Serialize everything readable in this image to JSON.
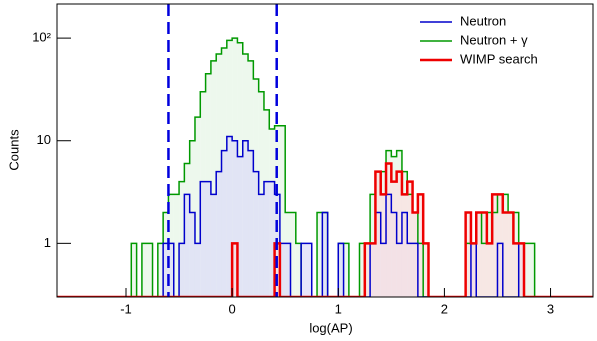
{
  "chart_data": {
    "type": "histogram",
    "xlabel": "log(AP)",
    "ylabel": "Counts",
    "log_y": true,
    "legend": "top-right",
    "xlim": [
      -1.65,
      3.4
    ],
    "ylim": [
      0.3,
      215
    ],
    "xticks": [
      -1,
      0,
      1,
      2,
      3
    ],
    "yticks": [
      1,
      10,
      {
        "value": 100,
        "label": "10²"
      }
    ],
    "cut_lines": {
      "x": [
        -0.6,
        0.42
      ],
      "color": "#0000dd"
    },
    "bins": [
      -1.2,
      -1.15,
      -1.1,
      -1.05,
      -1,
      -0.95,
      -0.9,
      -0.85,
      -0.8,
      -0.75,
      -0.7,
      -0.65,
      -0.6,
      -0.55,
      -0.5,
      -0.45,
      -0.4,
      -0.35,
      -0.3,
      -0.25,
      -0.2,
      -0.15,
      -0.1,
      -0.05,
      0,
      0.05,
      0.1,
      0.15,
      0.2,
      0.25,
      0.3,
      0.35,
      0.4,
      0.45,
      0.5,
      0.55,
      0.6,
      0.65,
      0.7,
      0.75,
      0.8,
      0.85,
      0.9,
      0.95,
      1,
      1.05,
      1.1,
      1.15,
      1.2,
      1.25,
      1.3,
      1.35,
      1.4,
      1.45,
      1.5,
      1.55,
      1.6,
      1.65,
      1.7,
      1.75,
      1.8,
      1.85,
      1.9,
      1.95,
      2,
      2.05,
      2.1,
      2.15,
      2.2,
      2.25,
      2.3,
      2.35,
      2.4,
      2.45,
      2.5,
      2.55,
      2.6,
      2.65,
      2.7,
      2.75,
      2.8,
      2.85,
      2.9,
      2.95,
      3
    ],
    "series": [
      {
        "name": "Neutron + γ",
        "color": "#009900",
        "fill": "#e6f5e6",
        "width": 1.5,
        "values": [
          0,
          0,
          0,
          0,
          0,
          1,
          0,
          1,
          1,
          0,
          1,
          2,
          3,
          3,
          4,
          6,
          10,
          17,
          30,
          45,
          60,
          70,
          80,
          95,
          100,
          90,
          70,
          60,
          40,
          30,
          20,
          13,
          14,
          14,
          2,
          2,
          1,
          0,
          0,
          0,
          2,
          2,
          0,
          0,
          1,
          1,
          0,
          0,
          1,
          1,
          3,
          5,
          5,
          8,
          7,
          8,
          5,
          3,
          2,
          1,
          0,
          0,
          0,
          0,
          0,
          0,
          0,
          0,
          1,
          1,
          2,
          1,
          2,
          2,
          3,
          3,
          2,
          2,
          1,
          1,
          1,
          0,
          0,
          0
        ]
      },
      {
        "name": "Neutron",
        "color": "#0000cc",
        "fill": "#dcdcf8",
        "width": 1.5,
        "values": [
          0,
          0,
          0,
          0,
          0,
          0,
          0,
          0,
          0,
          0,
          0,
          1,
          1,
          0,
          1,
          3,
          2,
          1,
          4,
          4,
          3,
          5,
          8,
          11,
          10,
          7,
          10,
          8,
          5,
          3,
          4,
          4,
          3,
          1,
          1,
          0,
          0,
          1,
          1,
          0,
          0,
          2,
          0,
          0,
          1,
          0,
          0,
          0,
          0,
          0,
          1,
          2,
          1,
          3,
          2,
          1,
          2,
          1,
          1,
          0,
          0,
          0,
          0,
          0,
          0,
          0,
          0,
          0,
          0,
          1,
          0,
          0,
          0,
          0,
          1,
          0,
          0,
          0,
          1,
          0,
          0,
          0,
          0,
          0
        ]
      },
      {
        "name": "WIMP search",
        "color": "#ee0000",
        "fill": "#fbe0e0",
        "width": 2.5,
        "values": [
          0,
          0,
          0,
          0,
          0,
          0,
          0,
          0,
          0,
          0,
          0,
          0,
          0,
          0,
          0,
          0,
          0,
          0,
          0,
          0,
          0,
          0,
          0,
          0,
          1,
          0,
          0,
          0,
          0,
          0,
          0,
          0,
          1,
          0,
          0,
          0,
          0,
          0,
          0,
          0,
          0,
          0,
          0,
          0,
          0,
          0,
          0,
          0,
          0,
          1,
          1,
          5,
          3,
          6,
          4,
          5,
          3,
          4,
          2,
          3,
          1,
          0,
          0,
          0,
          0,
          0,
          0,
          0,
          2,
          1,
          2,
          2,
          1,
          3,
          3,
          2,
          2,
          1,
          1,
          0,
          0,
          0,
          0,
          0
        ]
      }
    ]
  }
}
